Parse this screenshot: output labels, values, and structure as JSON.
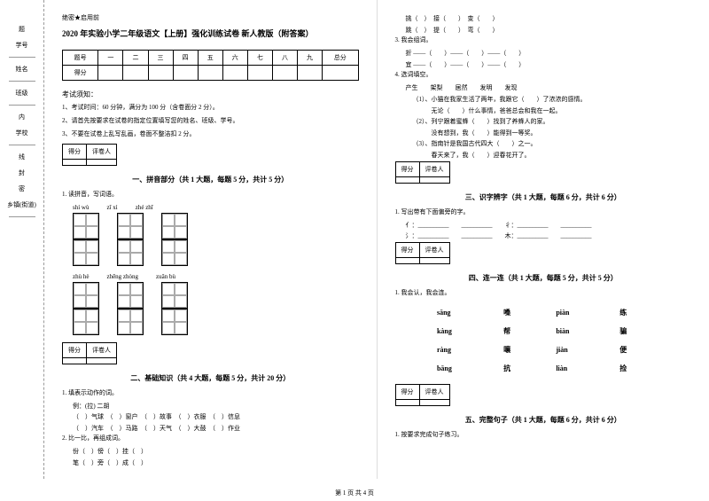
{
  "binding": {
    "labels": [
      "题",
      "学号",
      "姓名",
      "班级",
      "内",
      "学校",
      "线",
      "封",
      "密",
      "乡镇(街道)"
    ]
  },
  "header": {
    "confidential": "绝密★启用前",
    "title": "2020 年实验小学二年级语文【上册】强化训练试卷 新人教版（附答案）"
  },
  "scoreTable": {
    "headers": [
      "题号",
      "一",
      "二",
      "三",
      "四",
      "五",
      "六",
      "七",
      "八",
      "九",
      "总分"
    ],
    "row2": "得分"
  },
  "instructions": {
    "title": "考试须知：",
    "items": [
      "1、考试时间：60 分钟，满分为 100 分（含卷面分 2 分）。",
      "2、请首先按要求在试卷的指定位置填写您的姓名、班级、学号。",
      "3、不要在试卷上乱写乱画，卷面不整洁扣 2 分。"
    ]
  },
  "scoreBox": {
    "c1": "得分",
    "c2": "评卷人"
  },
  "section1": {
    "title": "一、拼音部分（共 1 大题，每题 5 分，共计 5 分）",
    "q1": "1. 读拼音，写词语。",
    "row1": [
      "shí  wù",
      "zǐ  xì",
      "zhé  zhī"
    ],
    "row2": [
      "zhù  hè",
      "zhēng  zhòng",
      "zuǎn  bù"
    ]
  },
  "section2": {
    "title": "二、基础知识（共 4 大题，每题 5 分，共计 20 分）",
    "q1": "1. 填表示动作的词。",
    "example": "例：(拉) 二胡",
    "line1": "（　）气球　（　）窗户　（　）故事　（　）衣服　（　）信息",
    "line2": "（　）汽车　（　）马路　（　）天气　（　）大鼓　（　）作业",
    "q2": "2. 比一比，再组成词。",
    "line3": "份（　）傍（　）挂（　）",
    "line4": "笔（　）旁（　）成（　）",
    "rcol1": "挑（　）　接（　　）　变（　　）",
    "rcol2": "跳（　）　提（　　）　弯（　　）",
    "q3": "3. 我会组词。",
    "line5": "折 ——（　　）——（　　）——（　　）",
    "line6": "宜 ——（　　）——（　　）——（　　）",
    "q4": "4. 选词填空。",
    "words": "产生　　架梨　　居然　　发明　　发现",
    "s1": "（1）、小猫在我家生活了两年，我跟它（　　）了浓浓的感情。",
    "s1b": "　　　无论（　　）什么事情，爸爸总会和我在一起。",
    "s2": "（2）、列宁跟着蜜蜂（　　）找到了养蜂人的家。",
    "s2b": "　　　没有想到，我（　　）能得到一等奖。",
    "s3": "（3）、指南针是我国古代四大（　　）之一。",
    "s3b": "　　　春天来了，我（　　）迎春花开了。"
  },
  "section3": {
    "title": "三、识字辨字（共 1 大题，每题 6 分，共计 6 分）",
    "q1": "1. 写出带有下面偏旁的字。",
    "line1": "亻：__________　　__________　　彳：__________　　__________",
    "line2": "氵：__________　　__________　　木：__________　　__________"
  },
  "section4": {
    "title": "四、连一连（共 1 大题，每题 5 分，共计 5 分）",
    "q1": "1. 我会认，我会连。",
    "rows": [
      [
        "sāng",
        "嗓",
        "piàn",
        "练"
      ],
      [
        "kàng",
        "帮",
        "biàn",
        "骗"
      ],
      [
        "ràng",
        "嚷",
        "jiàn",
        "便"
      ],
      [
        "bāng",
        "抗",
        "liàn",
        "捡"
      ]
    ]
  },
  "section5": {
    "title": "五、完整句子（共 1 大题，每题 6 分，共计 6 分）",
    "q1": "1. 按要求完成句子练习。"
  },
  "footer": "第 1 页 共 4 页"
}
